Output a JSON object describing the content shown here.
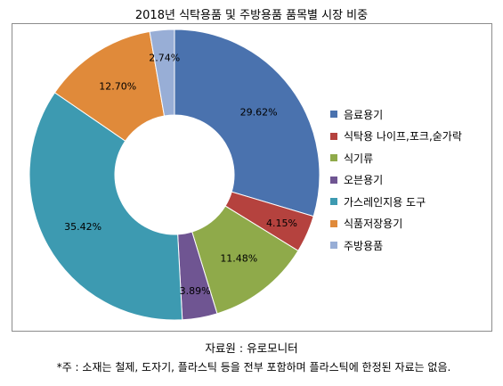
{
  "chart_data": {
    "type": "pie",
    "title": "2018년 식탁용품 및 주방용품 품목별 시장 비중",
    "categories": [
      "음료용기",
      "식탁용 나이프,포크,숟가락",
      "식기류",
      "오븐용기",
      "가스레인지용 도구",
      "식품저장용기",
      "주방용품"
    ],
    "values": [
      29.62,
      4.15,
      11.48,
      3.89,
      35.42,
      12.7,
      2.74
    ],
    "value_labels": [
      "29.62%",
      "4.15%",
      "11.48%",
      "3.89%",
      "35.42%",
      "12.70%",
      "2.74%"
    ],
    "colors": [
      "#4A72AE",
      "#B5423E",
      "#8FAA4A",
      "#6F5592",
      "#3D9AB1",
      "#E08A3A",
      "#98AED6"
    ],
    "donut": true,
    "legend_position": "right"
  },
  "source_text": "자료원 : 유로모니터",
  "note_text": "*주 : 소재는 철제, 도자기, 플라스틱 등을 전부 포함하며 플라스틱에 한정된 자료는 없음."
}
